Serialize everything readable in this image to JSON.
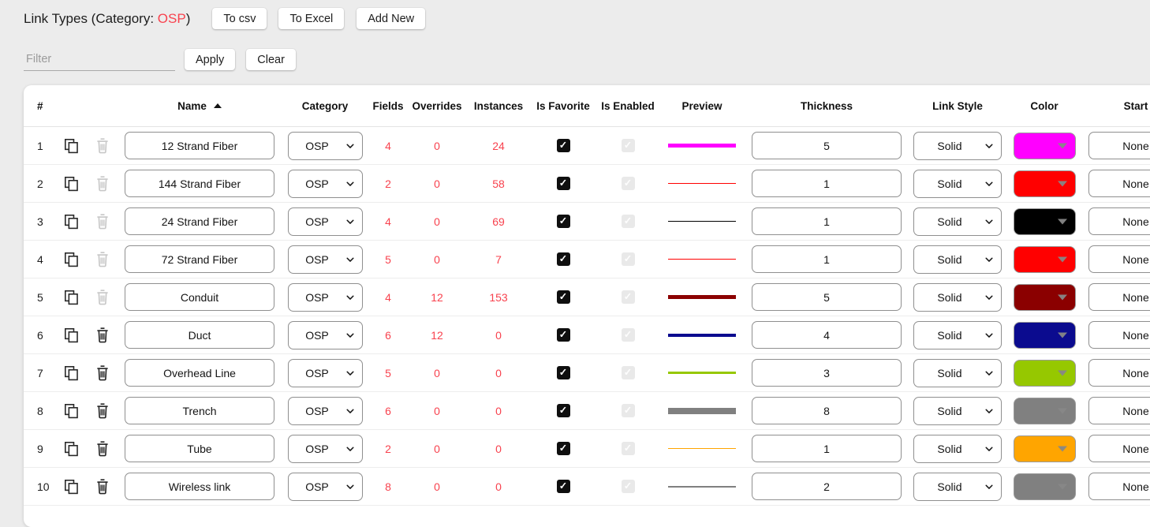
{
  "header": {
    "title_prefix": "Link Types (Category: ",
    "category_value": "OSP",
    "title_suffix": ")",
    "to_csv_label": "To csv",
    "to_excel_label": "To Excel",
    "add_new_label": "Add New"
  },
  "filter": {
    "placeholder": "Filter",
    "value": "",
    "apply_label": "Apply",
    "clear_label": "Clear"
  },
  "colors": {
    "accent_red": "#f8424e",
    "page_background": "#ececec"
  },
  "table": {
    "columns": [
      "#",
      "",
      "",
      "Name",
      "Category",
      "Fields",
      "Overrides",
      "Instances",
      "Is Favorite",
      "Is Enabled",
      "Preview",
      "Thickness",
      "Link Style",
      "Color",
      "Start"
    ],
    "sort": {
      "column": "Name",
      "direction": "asc"
    },
    "icons": {
      "copy": "copy-icon",
      "delete": "trash-icon"
    },
    "rows": [
      {
        "num": 1,
        "name": "12 Strand Fiber",
        "category": "OSP",
        "fields": 4,
        "overrides": 0,
        "instances": 24,
        "is_favorite": true,
        "is_enabled": true,
        "thickness": 5,
        "link_style": "Solid",
        "color": "#ff00ff",
        "start_style": "None",
        "delete_enabled": false
      },
      {
        "num": 2,
        "name": "144 Strand Fiber",
        "category": "OSP",
        "fields": 2,
        "overrides": 0,
        "instances": 58,
        "is_favorite": true,
        "is_enabled": true,
        "thickness": 1,
        "link_style": "Solid",
        "color": "#ff0000",
        "start_style": "None",
        "delete_enabled": false
      },
      {
        "num": 3,
        "name": "24 Strand Fiber",
        "category": "OSP",
        "fields": 4,
        "overrides": 0,
        "instances": 69,
        "is_favorite": true,
        "is_enabled": true,
        "thickness": 1,
        "link_style": "Solid",
        "color": "#000000",
        "start_style": "None",
        "delete_enabled": false
      },
      {
        "num": 4,
        "name": "72 Strand Fiber",
        "category": "OSP",
        "fields": 5,
        "overrides": 0,
        "instances": 7,
        "is_favorite": true,
        "is_enabled": true,
        "thickness": 1,
        "link_style": "Solid",
        "color": "#ff0000",
        "start_style": "None",
        "delete_enabled": false
      },
      {
        "num": 5,
        "name": "Conduit",
        "category": "OSP",
        "fields": 4,
        "overrides": 12,
        "instances": 153,
        "is_favorite": true,
        "is_enabled": true,
        "thickness": 5,
        "link_style": "Solid",
        "color": "#8b0000",
        "start_style": "None",
        "delete_enabled": false
      },
      {
        "num": 6,
        "name": "Duct",
        "category": "OSP",
        "fields": 6,
        "overrides": 12,
        "instances": 0,
        "is_favorite": true,
        "is_enabled": true,
        "thickness": 4,
        "link_style": "Solid",
        "color": "#0b0b8f",
        "start_style": "None",
        "delete_enabled": true
      },
      {
        "num": 7,
        "name": "Overhead Line",
        "category": "OSP",
        "fields": 5,
        "overrides": 0,
        "instances": 0,
        "is_favorite": true,
        "is_enabled": true,
        "thickness": 3,
        "link_style": "Solid",
        "color": "#96c800",
        "start_style": "None",
        "delete_enabled": true
      },
      {
        "num": 8,
        "name": "Trench",
        "category": "OSP",
        "fields": 6,
        "overrides": 0,
        "instances": 0,
        "is_favorite": true,
        "is_enabled": true,
        "thickness": 8,
        "link_style": "Solid",
        "color": "#808080",
        "start_style": "None",
        "delete_enabled": true
      },
      {
        "num": 9,
        "name": "Tube",
        "category": "OSP",
        "fields": 2,
        "overrides": 0,
        "instances": 0,
        "is_favorite": true,
        "is_enabled": true,
        "thickness": 1,
        "link_style": "Solid",
        "color": "#ffa500",
        "start_style": "None",
        "delete_enabled": true
      },
      {
        "num": 10,
        "name": "Wireless link",
        "category": "OSP",
        "fields": 8,
        "overrides": 0,
        "instances": 0,
        "is_favorite": true,
        "is_enabled": true,
        "thickness": 2,
        "link_style": "Solid",
        "color": "#808080",
        "start_style": "None",
        "delete_enabled": true
      }
    ]
  }
}
